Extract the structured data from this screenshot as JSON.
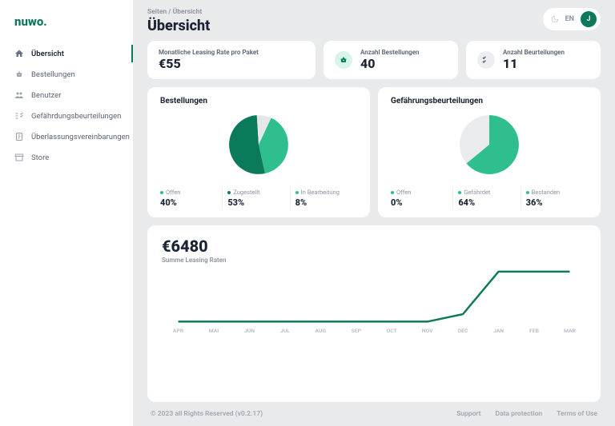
{
  "brand": "nuwo.",
  "breadcrumb": "Seiten  /  Übersicht",
  "page_title": "Übersicht",
  "lang": "EN",
  "avatar_initial": "J",
  "colors": {
    "accent": "#0a7a5a",
    "accent_light": "#2fbf8f",
    "muted": "#e5e7ea",
    "text": "#1a2332",
    "sub": "#8a92a0"
  },
  "nav": [
    {
      "label": "Übersicht",
      "icon": "home",
      "active": true
    },
    {
      "label": "Bestellungen",
      "icon": "basket",
      "active": false
    },
    {
      "label": "Benutzer",
      "icon": "users",
      "active": false
    },
    {
      "label": "Gefährdungsbeurteilungen",
      "icon": "assessment",
      "active": false
    },
    {
      "label": "Überlassungsvereinbarungen",
      "icon": "agreement",
      "active": false
    },
    {
      "label": "Store",
      "icon": "store",
      "active": false
    }
  ],
  "stats": [
    {
      "label": "Monatliche Leasing Rate pro Paket",
      "value": "€55",
      "icon": null
    },
    {
      "label": "Anzahl Bestellungen",
      "value": "40",
      "icon": "basket",
      "icon_bg": "#d7f5ea",
      "icon_fg": "#0a7a5a"
    },
    {
      "label": "Anzahl Beurteilungen",
      "value": "11",
      "icon": "checklist",
      "icon_bg": "#eceef1",
      "icon_fg": "#5a6270"
    }
  ],
  "pie1": {
    "title": "Bestellungen",
    "slices": [
      {
        "label": "Offen",
        "value": 40,
        "color": "#2fbf8f"
      },
      {
        "label": "Zugestellt",
        "value": 53,
        "color": "#0a7a5a"
      },
      {
        "label": "In Bearbeitung",
        "value": 8,
        "color": "#e5e7ea"
      }
    ]
  },
  "pie2": {
    "title": "Gefährungsbeurteilungen",
    "slices": [
      {
        "label": "Offen",
        "value": 0,
        "color": "#e5e7ea"
      },
      {
        "label": "Gefährdet",
        "value": 64,
        "color": "#2fbf8f"
      },
      {
        "label": "Bestanden",
        "value": 36,
        "color": "#e5e7ea"
      }
    ]
  },
  "line": {
    "value": "€6480",
    "sub": "Summe Leasing Raten",
    "months": [
      "APR",
      "MAI",
      "JUN",
      "JUL",
      "AUG",
      "SEP",
      "OCT",
      "NOV",
      "DEC",
      "JAN",
      "FEB",
      "MAR"
    ],
    "series": [
      0,
      0,
      0,
      0,
      0,
      0,
      0,
      0,
      15,
      100,
      100,
      100
    ],
    "stroke": "#0a7a5a",
    "stroke_width": 2.5
  },
  "footer": {
    "copyright": "© 2023 all Rights Reserved (v0.2.17)",
    "links": [
      "Support",
      "Data protection",
      "Terms of Use"
    ]
  }
}
